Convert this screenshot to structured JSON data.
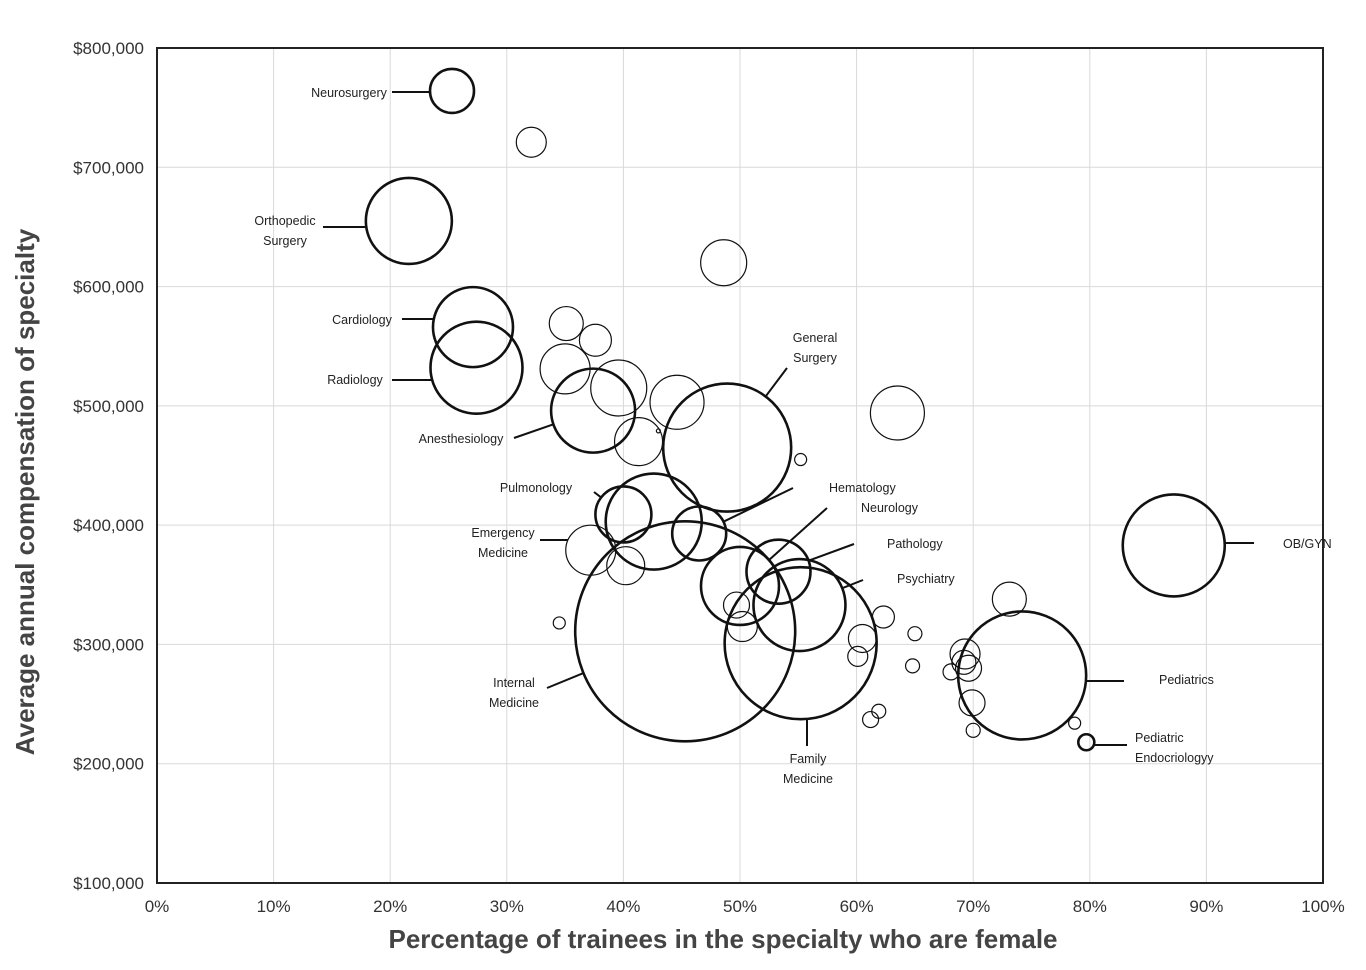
{
  "chart_data": {
    "type": "scatter",
    "subtype": "bubble",
    "xlabel": "Percentage of trainees in the specialty who are female",
    "ylabel": "Average annual compensation of specialty",
    "xlim": [
      0,
      100
    ],
    "ylim": [
      100000,
      800000
    ],
    "x_ticks": [
      0,
      10,
      20,
      30,
      40,
      50,
      60,
      70,
      80,
      90,
      100
    ],
    "x_tick_labels": [
      "0%",
      "10%",
      "20%",
      "30%",
      "40%",
      "50%",
      "60%",
      "70%",
      "80%",
      "90%",
      "100%"
    ],
    "y_ticks": [
      100000,
      200000,
      300000,
      400000,
      500000,
      600000,
      700000,
      800000
    ],
    "y_tick_labels": [
      "$100,000",
      "$200,000",
      "$300,000",
      "$400,000",
      "$500,000",
      "$600,000",
      "$700,000",
      "$800,000"
    ],
    "grid": true,
    "bubbles": [
      {
        "name": "Neurosurgery",
        "x": 25.3,
        "y": 764000,
        "size": 22,
        "bold": true
      },
      {
        "name": "",
        "x": 32.1,
        "y": 721000,
        "size": 15
      },
      {
        "name": "Orthopedic Surgery",
        "x": 21.6,
        "y": 655000,
        "size": 43,
        "bold": true
      },
      {
        "name": "",
        "x": 48.6,
        "y": 620000,
        "size": 23
      },
      {
        "name": "Cardiology",
        "x": 27.1,
        "y": 566000,
        "size": 40,
        "bold": true
      },
      {
        "name": "Radiology",
        "x": 27.4,
        "y": 532000,
        "size": 46,
        "bold": true
      },
      {
        "name": "",
        "x": 35.1,
        "y": 569000,
        "size": 17
      },
      {
        "name": "",
        "x": 37.6,
        "y": 555000,
        "size": 16
      },
      {
        "name": "",
        "x": 35.0,
        "y": 531000,
        "size": 25
      },
      {
        "name": "",
        "x": 39.6,
        "y": 515000,
        "size": 28
      },
      {
        "name": "",
        "x": 44.6,
        "y": 503000,
        "size": 27
      },
      {
        "name": "",
        "x": 63.5,
        "y": 494000,
        "size": 27
      },
      {
        "name": "Anesthesiology",
        "x": 37.4,
        "y": 496000,
        "size": 42,
        "bold": true
      },
      {
        "name": "",
        "x": 41.3,
        "y": 470000,
        "size": 24
      },
      {
        "name": "",
        "x": 43.0,
        "y": 479000,
        "size": 2
      },
      {
        "name": "General Surgery",
        "x": 48.9,
        "y": 465000,
        "size": 64,
        "bold": true
      },
      {
        "name": "",
        "x": 55.2,
        "y": 455000,
        "size": 6
      },
      {
        "name": "Pulmonology",
        "x": 40.0,
        "y": 409000,
        "size": 28,
        "bold": true
      },
      {
        "name": "",
        "x": 42.6,
        "y": 403000,
        "size": 48,
        "bold": true
      },
      {
        "name": "Hematology",
        "x": 46.5,
        "y": 393000,
        "size": 27,
        "bold": true
      },
      {
        "name": "Emergency Medicine",
        "x": 37.2,
        "y": 379000,
        "size": 25
      },
      {
        "name": "",
        "x": 40.2,
        "y": 366000,
        "size": 19
      },
      {
        "name": "Neurology",
        "x": 50.0,
        "y": 349000,
        "size": 39,
        "bold": true
      },
      {
        "name": "Pathology",
        "x": 53.3,
        "y": 361000,
        "size": 32,
        "bold": true
      },
      {
        "name": "",
        "x": 49.7,
        "y": 333000,
        "size": 13
      },
      {
        "name": "",
        "x": 50.2,
        "y": 315000,
        "size": 15
      },
      {
        "name": "Psychiatry",
        "x": 55.1,
        "y": 333000,
        "size": 46,
        "bold": true
      },
      {
        "name": "Internal Medicine",
        "x": 45.3,
        "y": 311000,
        "size": 110,
        "bold": true
      },
      {
        "name": "Family Medicine",
        "x": 55.2,
        "y": 301000,
        "size": 76,
        "bold": true
      },
      {
        "name": "",
        "x": 34.5,
        "y": 318000,
        "size": 6
      },
      {
        "name": "",
        "x": 62.3,
        "y": 323000,
        "size": 11
      },
      {
        "name": "",
        "x": 65.0,
        "y": 309000,
        "size": 7
      },
      {
        "name": "",
        "x": 60.5,
        "y": 305000,
        "size": 14
      },
      {
        "name": "",
        "x": 60.1,
        "y": 290000,
        "size": 10
      },
      {
        "name": "",
        "x": 64.8,
        "y": 282000,
        "size": 7
      },
      {
        "name": "",
        "x": 61.9,
        "y": 244000,
        "size": 7
      },
      {
        "name": "",
        "x": 61.2,
        "y": 237000,
        "size": 8
      },
      {
        "name": "",
        "x": 73.1,
        "y": 338000,
        "size": 17
      },
      {
        "name": "",
        "x": 69.3,
        "y": 292000,
        "size": 15
      },
      {
        "name": "",
        "x": 69.2,
        "y": 285000,
        "size": 12
      },
      {
        "name": "",
        "x": 69.6,
        "y": 280000,
        "size": 13
      },
      {
        "name": "",
        "x": 68.1,
        "y": 277000,
        "size": 8
      },
      {
        "name": "",
        "x": 69.9,
        "y": 251000,
        "size": 13
      },
      {
        "name": "",
        "x": 70.0,
        "y": 228000,
        "size": 7
      },
      {
        "name": "Pediatrics",
        "x": 74.2,
        "y": 274000,
        "size": 64,
        "bold": true
      },
      {
        "name": "",
        "x": 78.7,
        "y": 234000,
        "size": 6
      },
      {
        "name": "Pediatric Endocriologyy",
        "x": 79.7,
        "y": 218000,
        "size": 8,
        "bold": true
      },
      {
        "name": "OB/GYN",
        "x": 87.2,
        "y": 383000,
        "size": 51,
        "bold": true
      }
    ],
    "annotations": [
      {
        "text": [
          "Neurosurgery"
        ],
        "bubble": "Neurosurgery"
      },
      {
        "text": [
          "Orthopedic",
          "Surgery"
        ],
        "bubble": "Orthopedic Surgery"
      },
      {
        "text": [
          "Cardiology"
        ],
        "bubble": "Cardiology"
      },
      {
        "text": [
          "Radiology"
        ],
        "bubble": "Radiology"
      },
      {
        "text": [
          "Anesthesiology"
        ],
        "bubble": "Anesthesiology"
      },
      {
        "text": [
          "General",
          "Surgery"
        ],
        "bubble": "General Surgery"
      },
      {
        "text": [
          "Pulmonology"
        ],
        "bubble": "Pulmonology"
      },
      {
        "text": [
          "Hematology"
        ],
        "bubble": "Hematology"
      },
      {
        "text": [
          "Neurology"
        ],
        "bubble": "Neurology"
      },
      {
        "text": [
          "Emergency",
          "Medicine"
        ],
        "bubble": "Emergency Medicine"
      },
      {
        "text": [
          "Pathology"
        ],
        "bubble": "Pathology"
      },
      {
        "text": [
          "Psychiatry"
        ],
        "bubble": "Psychiatry"
      },
      {
        "text": [
          "OB/GYN"
        ],
        "bubble": "OB/GYN"
      },
      {
        "text": [
          "Internal",
          "Medicine"
        ],
        "bubble": "Internal Medicine"
      },
      {
        "text": [
          "Pediatrics"
        ],
        "bubble": "Pediatrics"
      },
      {
        "text": [
          "Family",
          "Medicine"
        ],
        "bubble": "Family Medicine"
      },
      {
        "text": [
          "Pediatric",
          "Endocriologyy"
        ],
        "bubble": "Pediatric Endocriologyy"
      }
    ]
  }
}
